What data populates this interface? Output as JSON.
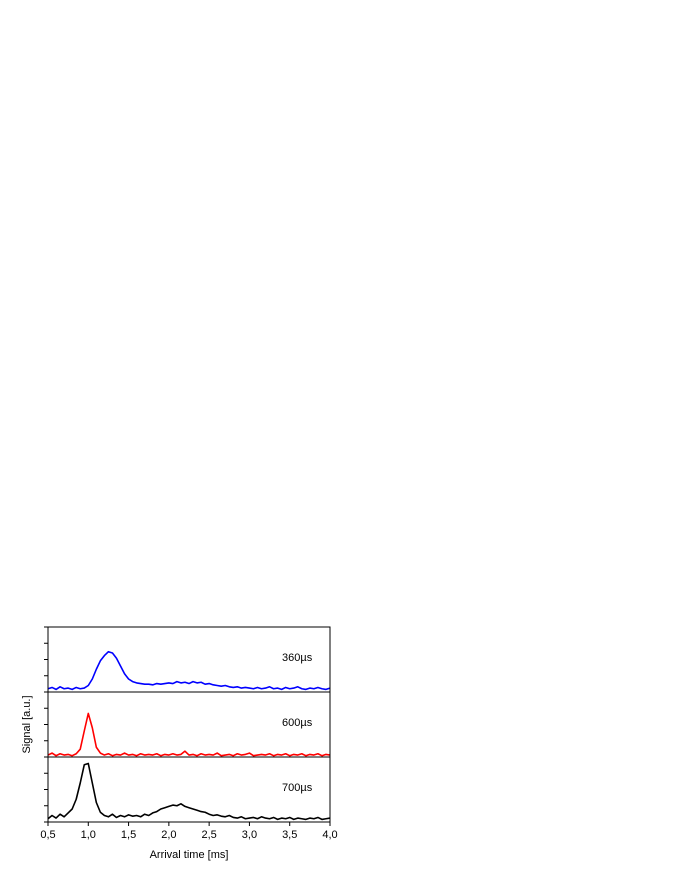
{
  "chart_data": {
    "type": "line",
    "layout": "stacked",
    "xlabel": "Arrival time [ms]",
    "ylabel": "Signal [a.u.]",
    "xlim": [
      0.5,
      4.0
    ],
    "xticks": [
      {
        "value": 0.5,
        "label": "0,5"
      },
      {
        "value": 1.0,
        "label": "1,0"
      },
      {
        "value": 1.5,
        "label": "1,5"
      },
      {
        "value": 2.0,
        "label": "2,0"
      },
      {
        "value": 2.5,
        "label": "2,5"
      },
      {
        "value": 3.0,
        "label": "3,0"
      },
      {
        "value": 3.5,
        "label": "3,5"
      },
      {
        "value": 4.0,
        "label": "4,0"
      }
    ],
    "ylim": [
      0,
      1
    ],
    "yticks": [
      0,
      0.25,
      0.5,
      0.75,
      1
    ],
    "x": [
      0.5,
      0.55,
      0.6,
      0.65,
      0.7,
      0.75,
      0.8,
      0.85,
      0.9,
      0.95,
      1.0,
      1.05,
      1.1,
      1.15,
      1.2,
      1.25,
      1.3,
      1.35,
      1.4,
      1.45,
      1.5,
      1.55,
      1.6,
      1.65,
      1.7,
      1.75,
      1.8,
      1.85,
      1.9,
      1.95,
      2.0,
      2.05,
      2.1,
      2.15,
      2.2,
      2.25,
      2.3,
      2.35,
      2.4,
      2.45,
      2.5,
      2.55,
      2.6,
      2.65,
      2.7,
      2.75,
      2.8,
      2.85,
      2.9,
      2.95,
      3.0,
      3.05,
      3.1,
      3.15,
      3.2,
      3.25,
      3.3,
      3.35,
      3.4,
      3.45,
      3.5,
      3.55,
      3.6,
      3.65,
      3.7,
      3.75,
      3.8,
      3.85,
      3.9,
      3.95,
      4.0
    ],
    "series": [
      {
        "name": "360µs",
        "color": "#0000ff",
        "values": [
          0.05,
          0.07,
          0.04,
          0.08,
          0.05,
          0.06,
          0.04,
          0.07,
          0.05,
          0.06,
          0.1,
          0.2,
          0.35,
          0.48,
          0.56,
          0.62,
          0.6,
          0.52,
          0.4,
          0.28,
          0.2,
          0.16,
          0.14,
          0.13,
          0.12,
          0.12,
          0.11,
          0.13,
          0.12,
          0.13,
          0.14,
          0.13,
          0.16,
          0.14,
          0.15,
          0.13,
          0.16,
          0.14,
          0.15,
          0.12,
          0.13,
          0.11,
          0.1,
          0.09,
          0.1,
          0.08,
          0.07,
          0.08,
          0.06,
          0.07,
          0.06,
          0.05,
          0.07,
          0.05,
          0.06,
          0.08,
          0.05,
          0.06,
          0.04,
          0.07,
          0.05,
          0.06,
          0.08,
          0.05,
          0.04,
          0.06,
          0.05,
          0.07,
          0.05,
          0.04,
          0.06
        ]
      },
      {
        "name": "600µs",
        "color": "#ff0000",
        "values": [
          0.03,
          0.06,
          0.02,
          0.05,
          0.03,
          0.04,
          0.02,
          0.05,
          0.12,
          0.4,
          0.67,
          0.45,
          0.15,
          0.06,
          0.03,
          0.05,
          0.02,
          0.04,
          0.03,
          0.06,
          0.03,
          0.04,
          0.02,
          0.05,
          0.03,
          0.04,
          0.03,
          0.05,
          0.02,
          0.04,
          0.03,
          0.05,
          0.03,
          0.04,
          0.09,
          0.03,
          0.04,
          0.02,
          0.05,
          0.03,
          0.04,
          0.03,
          0.06,
          0.02,
          0.03,
          0.04,
          0.02,
          0.05,
          0.03,
          0.04,
          0.06,
          0.02,
          0.03,
          0.04,
          0.03,
          0.05,
          0.02,
          0.04,
          0.03,
          0.05,
          0.02,
          0.04,
          0.03,
          0.05,
          0.02,
          0.04,
          0.03,
          0.05,
          0.02,
          0.04,
          0.03
        ]
      },
      {
        "name": "700µs",
        "color": "#000000",
        "values": [
          0.05,
          0.1,
          0.06,
          0.12,
          0.08,
          0.14,
          0.2,
          0.35,
          0.6,
          0.88,
          0.9,
          0.6,
          0.3,
          0.15,
          0.1,
          0.08,
          0.12,
          0.07,
          0.1,
          0.08,
          0.11,
          0.09,
          0.1,
          0.08,
          0.12,
          0.1,
          0.14,
          0.16,
          0.2,
          0.22,
          0.24,
          0.26,
          0.25,
          0.28,
          0.24,
          0.22,
          0.2,
          0.18,
          0.16,
          0.15,
          0.12,
          0.1,
          0.11,
          0.09,
          0.08,
          0.1,
          0.07,
          0.06,
          0.08,
          0.05,
          0.06,
          0.07,
          0.05,
          0.08,
          0.06,
          0.05,
          0.07,
          0.04,
          0.06,
          0.05,
          0.07,
          0.04,
          0.06,
          0.05,
          0.04,
          0.06,
          0.05,
          0.07,
          0.04,
          0.05,
          0.06
        ]
      }
    ]
  }
}
